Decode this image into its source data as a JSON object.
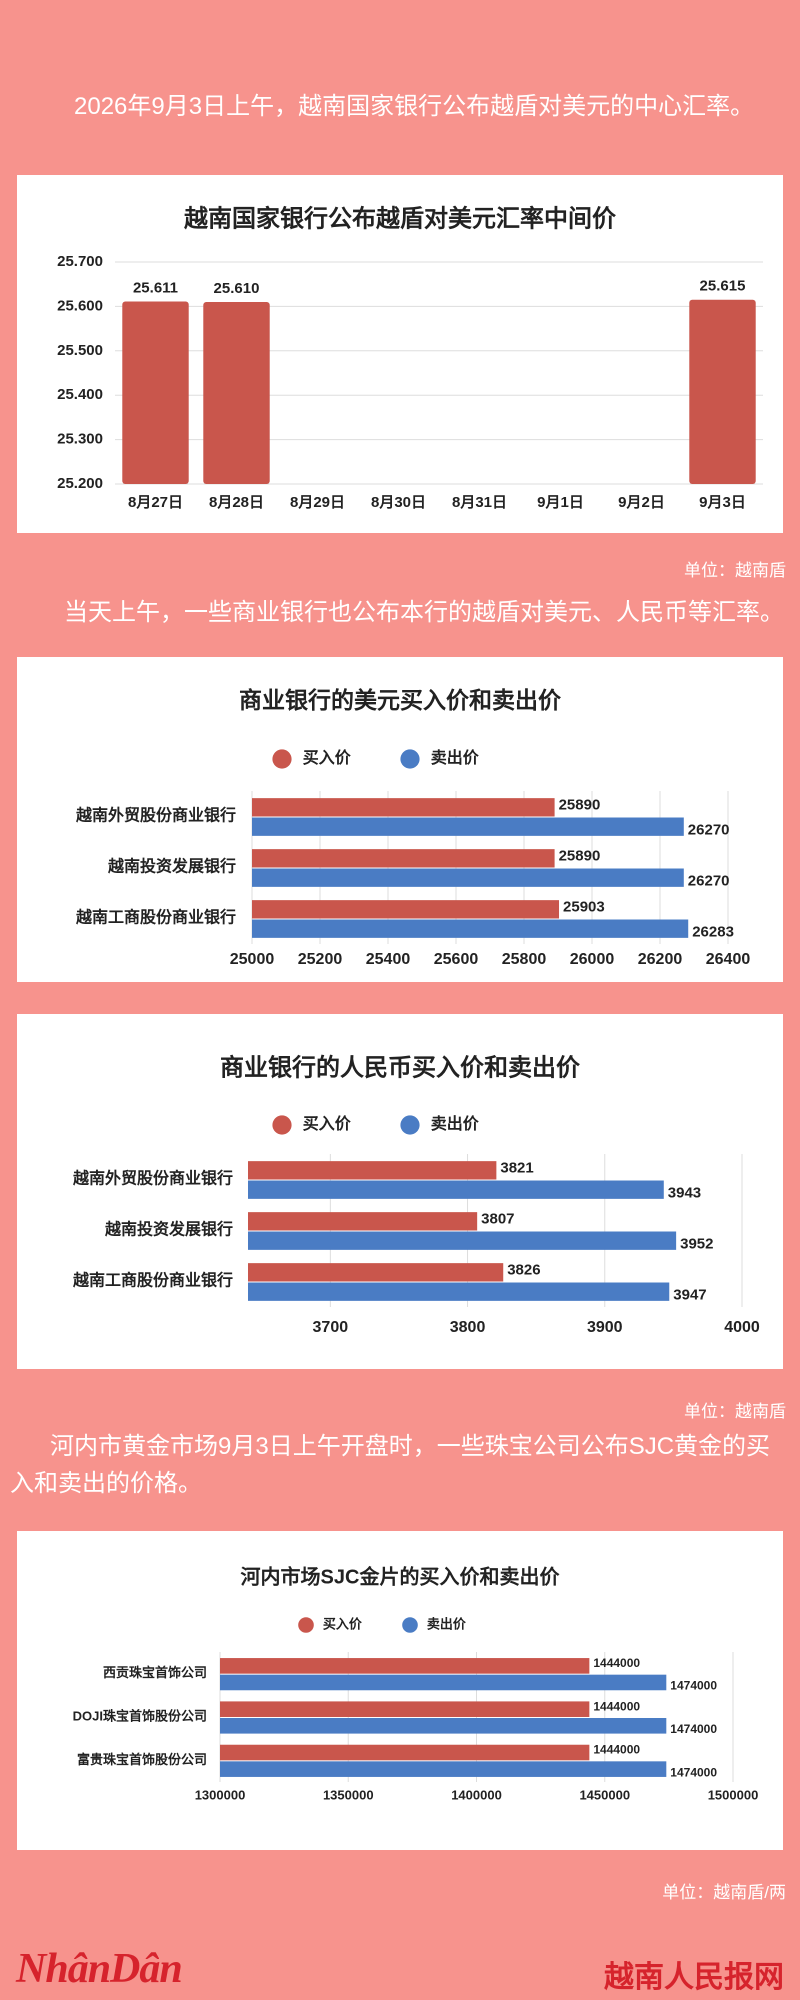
{
  "intro": "2026年9月3日上午，越南国家银行公布越盾对美元的中心汇率。",
  "unit_1": "单位：越南盾",
  "paragraph_2": "当天上午，一些商业银行也公布本行的越盾对美元、人民币等汇率。",
  "unit_2": "单位：越南盾",
  "paragraph_3": "河内市黄金市场9月3日上午开盘时，一些珠宝公司公布SJC黄金的买入和卖出的价格。",
  "unit_3": "单位：越南盾/两",
  "footer": {
    "logo": "NhânDân",
    "site": "越南人民报网"
  },
  "chart_data": [
    {
      "type": "bar",
      "title": "越南国家银行公布越盾对美元汇率中间价",
      "categories": [
        "8月27日",
        "8月28日",
        "8月29日",
        "8月30日",
        "8月31日",
        "9月1日",
        "9月2日",
        "9月3日"
      ],
      "values": [
        25.611,
        25.61,
        null,
        null,
        null,
        null,
        null,
        25.615
      ],
      "value_labels": [
        "25.611",
        "25.610",
        null,
        null,
        null,
        null,
        null,
        "25.615"
      ],
      "color": "#c9564c",
      "ylim": [
        25.2,
        25.7
      ],
      "yticks": [
        {
          "value": 25.2,
          "label": "25.200"
        },
        {
          "value": 25.3,
          "label": "25.300"
        },
        {
          "value": 25.4,
          "label": "25.400"
        },
        {
          "value": 25.5,
          "label": "25.500"
        },
        {
          "value": 25.6,
          "label": "25.600"
        },
        {
          "value": 25.7,
          "label": "25.700"
        }
      ],
      "grid": true
    },
    {
      "type": "hbar",
      "title": "商业银行的美元买入价和卖出价",
      "categories": [
        "越南外贸股份商业银行",
        "越南投资发展银行",
        "越南工商股份商业银行"
      ],
      "series": [
        {
          "name": "买入价",
          "color": "#c9564c",
          "values": [
            25890,
            25890,
            25903
          ]
        },
        {
          "name": "卖出价",
          "color": "#4a7cc4",
          "values": [
            26270,
            26270,
            26283
          ]
        }
      ],
      "xlim": [
        25000,
        26400
      ],
      "xticks": [
        25000,
        25200,
        25400,
        25600,
        25800,
        26000,
        26200,
        26400
      ],
      "grid": true
    },
    {
      "type": "hbar",
      "title": "商业银行的人民币买入价和卖出价",
      "categories": [
        "越南外贸股份商业银行",
        "越南投资发展银行",
        "越南工商股份商业银行"
      ],
      "series": [
        {
          "name": "买入价",
          "color": "#c9564c",
          "values": [
            3821,
            3807,
            3826
          ]
        },
        {
          "name": "卖出价",
          "color": "#4a7cc4",
          "values": [
            3943,
            3952,
            3947
          ]
        }
      ],
      "xlim": [
        3640,
        4000
      ],
      "xticks": [
        3700,
        3800,
        3900,
        4000
      ],
      "grid": true
    },
    {
      "type": "hbar",
      "title": "河内市场SJC金片的买入价和卖出价",
      "categories": [
        "西贡珠宝首饰公司",
        "DOJI珠宝首饰股份公司",
        "富贵珠宝首饰股份公司"
      ],
      "series": [
        {
          "name": "买入价",
          "color": "#c9564c",
          "values": [
            1444000,
            1444000,
            1444000
          ]
        },
        {
          "name": "卖出价",
          "color": "#4a7cc4",
          "values": [
            1474000,
            1474000,
            1474000
          ]
        }
      ],
      "xlim": [
        1300000,
        1500000
      ],
      "xticks": [
        1300000,
        1350000,
        1400000,
        1450000,
        1500000
      ],
      "grid": true
    }
  ]
}
